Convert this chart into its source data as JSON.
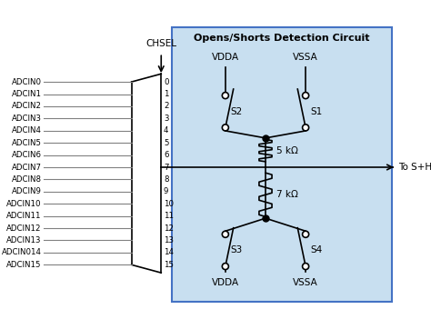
{
  "title": "Opens/Shorts Detection Circuit",
  "bg_color": "#c8dff0",
  "box_color": "#c8dff0",
  "box_border": "#4472c4",
  "adcin_labels": [
    "ADCIN0",
    "ADCIN1",
    "ADCIN2",
    "ADCIN3",
    "ADCIN4",
    "ADCIN5",
    "ADCIN6",
    "ADCIN7",
    "ADCIN8",
    "ADCIN9",
    "ADCIN10",
    "ADCIN11",
    "ADCIN12",
    "ADCIN13",
    "ADCIN014",
    "ADCIN15"
  ],
  "channel_numbers": [
    "0",
    "1",
    "2",
    "3",
    "4",
    "5",
    "6",
    "7",
    "8",
    "9",
    "10",
    "11",
    "12",
    "13",
    "14",
    "15"
  ],
  "chsel_label": "CHSEL",
  "vdda_label": "VDDA",
  "vssa_label": "VSSA",
  "s1_label": "S1",
  "s2_label": "S2",
  "s3_label": "S3",
  "s4_label": "S4",
  "r1_label": "5 kΩ",
  "r2_label": "7 kΩ",
  "to_sh_label": "To S+H"
}
